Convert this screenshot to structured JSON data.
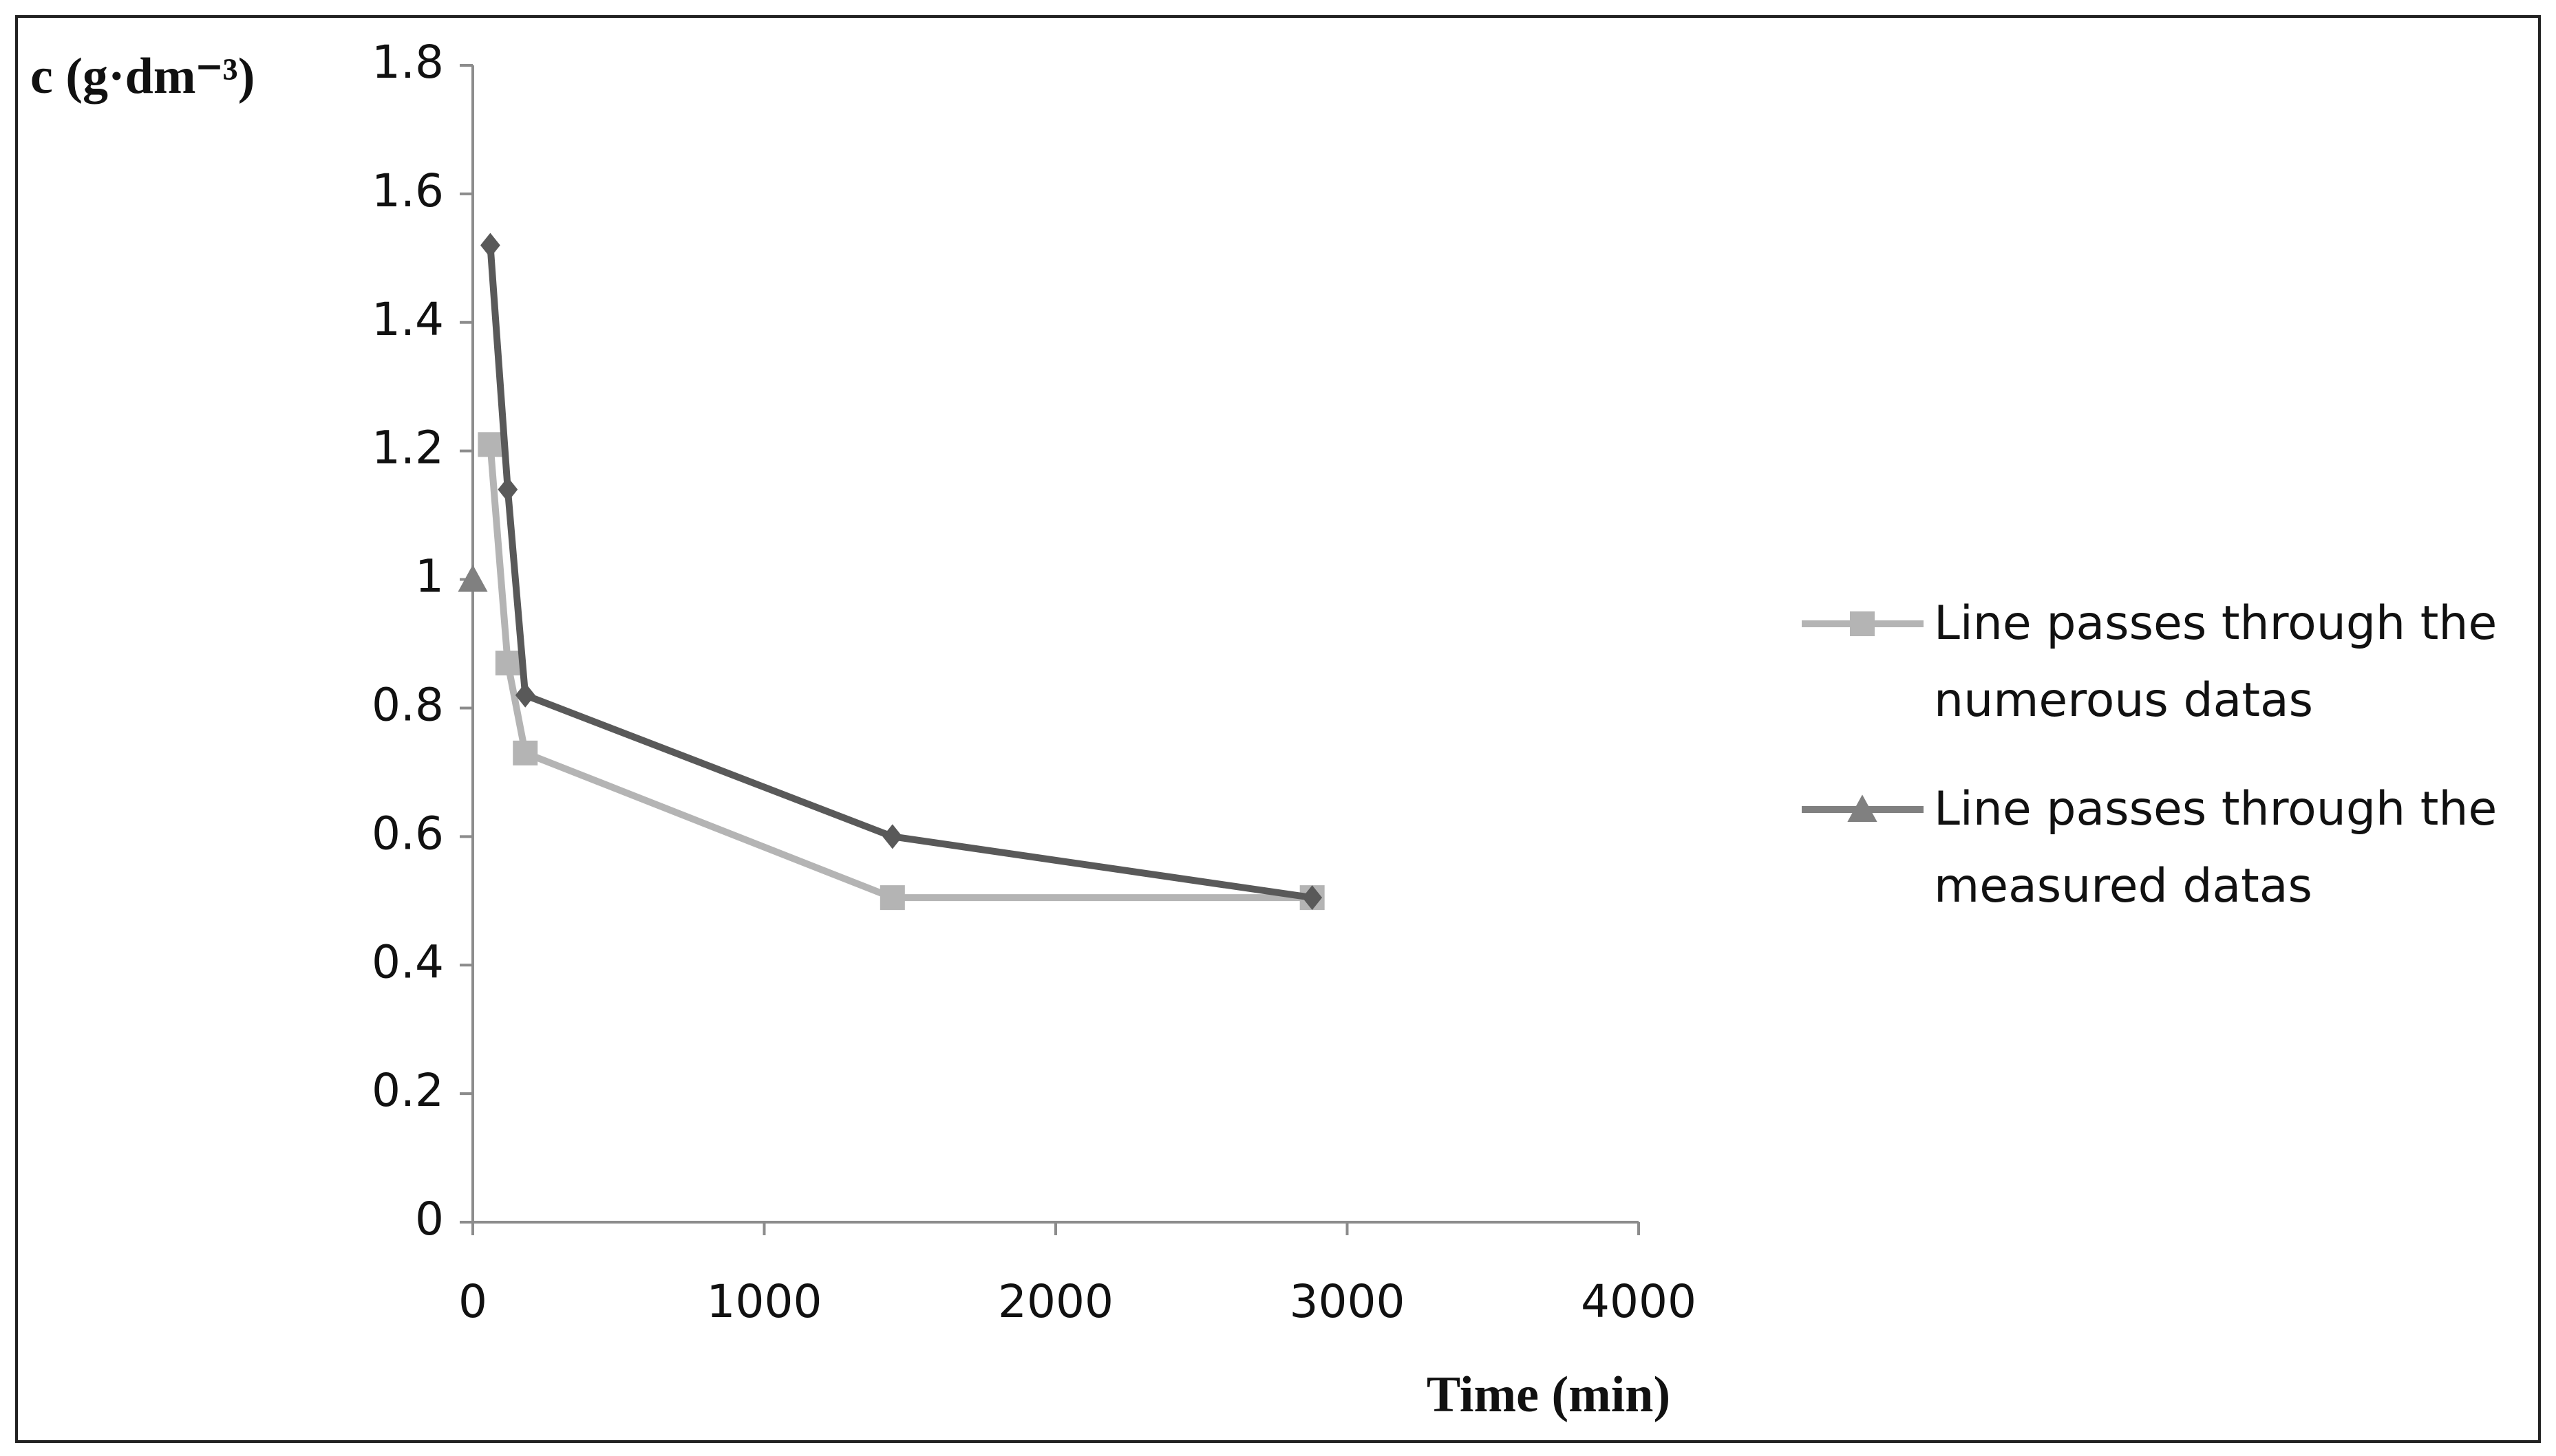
{
  "chart_data": {
    "type": "line",
    "y_label": "c (g·dm⁻³)",
    "x_label": "Time (min)",
    "xlim": [
      0,
      4000
    ],
    "xticks": [
      0,
      1000,
      2000,
      3000,
      4000
    ],
    "ylim": [
      0,
      1.8
    ],
    "yticks": [
      0,
      0.2,
      0.4,
      0.6,
      0.8,
      1,
      1.2,
      1.4,
      1.6,
      1.8
    ],
    "grid": false,
    "legend": "right",
    "series": [
      {
        "name": "Line passes through the numerous datas",
        "color": "#b4b4b4",
        "marker": "square",
        "x": [
          60,
          120,
          180,
          1440,
          2880
        ],
        "values": [
          1.21,
          0.87,
          0.73,
          0.505,
          0.505
        ]
      },
      {
        "name": "Line passes through the measured datas",
        "color": "#808080",
        "marker": "triangle",
        "x": [
          0
        ],
        "values": [
          1.0
        ]
      },
      {
        "color": "#595959",
        "marker": "diamond",
        "x": [
          60,
          120,
          180,
          1440,
          2880
        ],
        "values": [
          1.52,
          1.14,
          0.82,
          0.6,
          0.505
        ]
      }
    ]
  }
}
